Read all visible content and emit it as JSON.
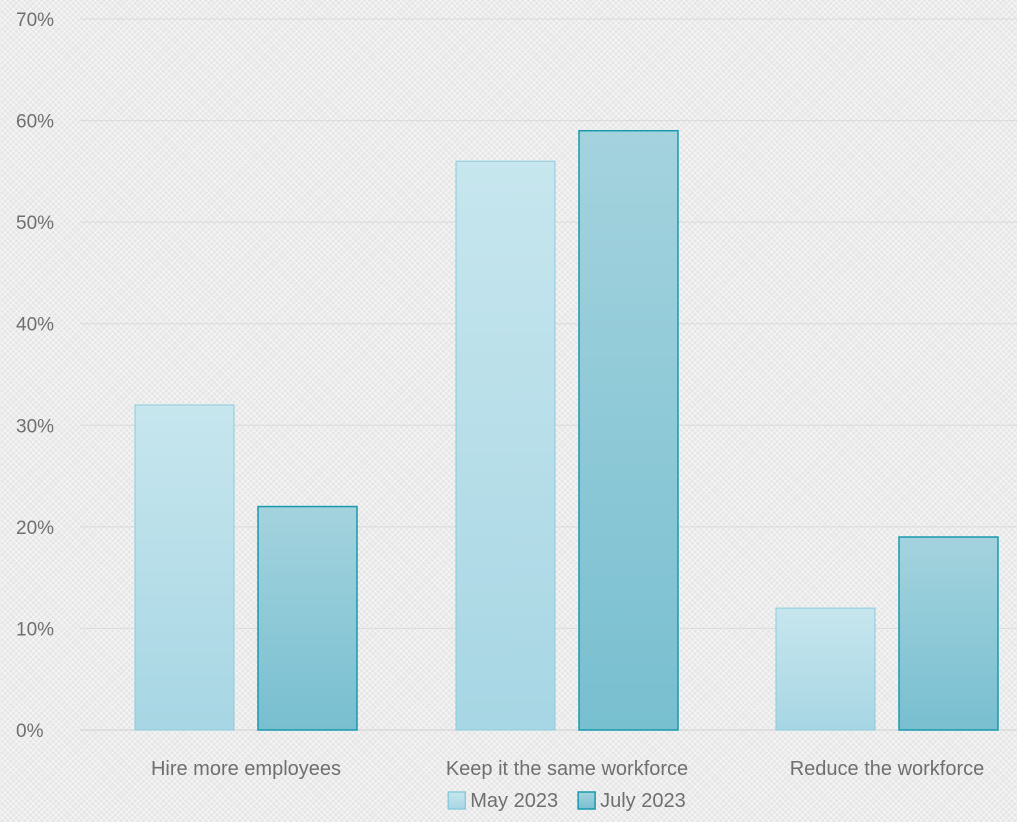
{
  "chart_data": {
    "type": "bar",
    "categories": [
      "Hire more employees",
      "Keep it the same workforce",
      "Reduce the workforce"
    ],
    "series": [
      {
        "name": "May 2023",
        "values": [
          32,
          56,
          12
        ],
        "color_top": "#c7e6ee",
        "color_bottom": "#a7d6e4",
        "stroke": "#8ccbdc"
      },
      {
        "name": "July 2023",
        "values": [
          22,
          59,
          19
        ],
        "color_top": "#a4d3de",
        "color_bottom": "#78bfd0",
        "stroke": "#1899ad"
      }
    ],
    "ylim": [
      0,
      70
    ],
    "yticks": [
      0,
      10,
      20,
      30,
      40,
      50,
      60,
      70
    ],
    "ytick_suffix": "%",
    "legend_position": "bottom",
    "grid": true
  }
}
